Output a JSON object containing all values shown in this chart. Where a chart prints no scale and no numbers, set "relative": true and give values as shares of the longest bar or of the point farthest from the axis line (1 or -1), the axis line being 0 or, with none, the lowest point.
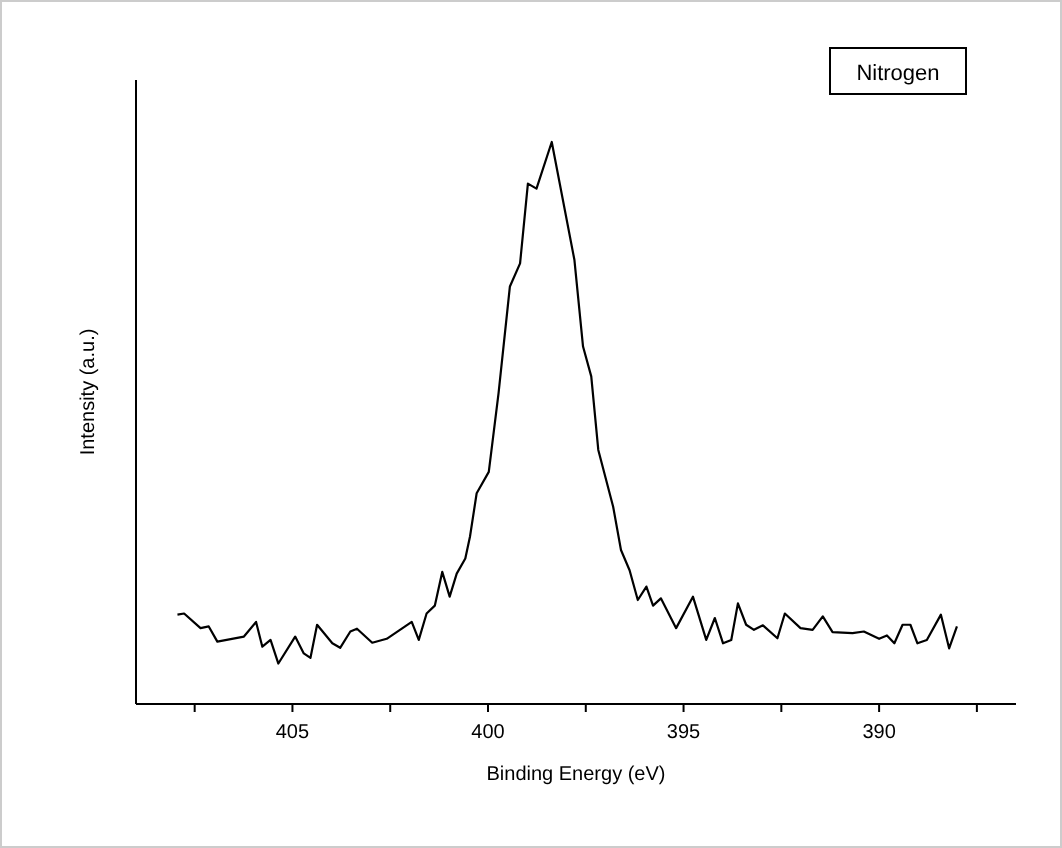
{
  "chart_data": {
    "type": "line",
    "relative": true,
    "xlabel": "Binding Energy (eV)",
    "ylabel": "Intensity (a.u.)",
    "annotations": [
      "Nitrogen"
    ],
    "xlim": [
      409,
      386.5
    ],
    "xticks": [
      {
        "value": 407.5,
        "label": null
      },
      405,
      {
        "value": 402.5,
        "label": null
      },
      400,
      {
        "value": 397.5,
        "label": null
      },
      395,
      {
        "value": 392.5,
        "label": null
      },
      390,
      {
        "value": 387.5,
        "label": null
      }
    ],
    "x": [
      407.94,
      407.77,
      407.35,
      407.14,
      406.92,
      406.24,
      405.93,
      405.77,
      405.56,
      405.36,
      404.93,
      404.71,
      404.54,
      404.37,
      403.98,
      403.78,
      403.52,
      403.35,
      402.96,
      402.59,
      401.95,
      401.77,
      401.57,
      401.36,
      401.17,
      400.98,
      400.8,
      400.58,
      400.46,
      400.29,
      399.98,
      399.73,
      399.44,
      399.18,
      398.98,
      398.76,
      398.37,
      397.79,
      397.57,
      397.36,
      397.18,
      396.8,
      396.6,
      396.38,
      396.17,
      395.95,
      395.78,
      395.58,
      395.19,
      394.76,
      394.42,
      394.2,
      393.99,
      393.78,
      393.61,
      393.4,
      393.2,
      392.97,
      392.6,
      392.41,
      392.01,
      391.7,
      391.44,
      391.19,
      390.68,
      390.39,
      390,
      389.8,
      389.61,
      389.4,
      389.2,
      389.02,
      388.78,
      388.42,
      388.21,
      388.01
    ],
    "series": [
      {
        "color": "#000000",
        "values": [
          0.159,
          0.161,
          0.135,
          0.138,
          0.111,
          0.12,
          0.146,
          0.102,
          0.114,
          0.072,
          0.12,
          0.09,
          0.082,
          0.141,
          0.108,
          0.1,
          0.129,
          0.134,
          0.109,
          0.116,
          0.146,
          0.114,
          0.161,
          0.175,
          0.235,
          0.191,
          0.232,
          0.259,
          0.298,
          0.375,
          0.413,
          0.553,
          0.743,
          0.784,
          0.926,
          0.917,
          1,
          0.79,
          0.636,
          0.583,
          0.452,
          0.351,
          0.274,
          0.238,
          0.185,
          0.209,
          0.175,
          0.188,
          0.135,
          0.191,
          0.114,
          0.153,
          0.108,
          0.114,
          0.179,
          0.141,
          0.132,
          0.14,
          0.117,
          0.161,
          0.135,
          0.132,
          0.156,
          0.128,
          0.126,
          0.129,
          0.116,
          0.122,
          0.108,
          0.141,
          0.141,
          0.108,
          0.114,
          0.159,
          0.099,
          0.138
        ]
      }
    ],
    "grid": false,
    "line_style": "solid"
  }
}
